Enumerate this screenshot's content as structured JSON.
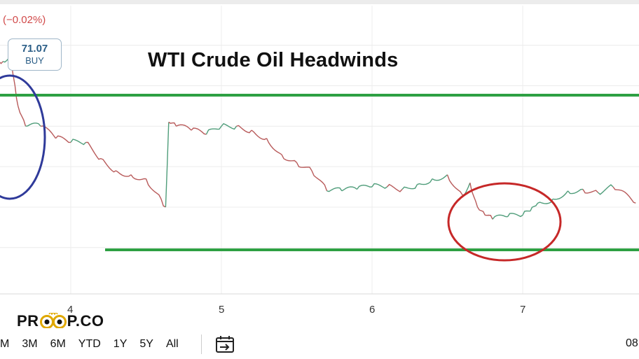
{
  "ticker": {
    "change_pct": "(−0.02%)",
    "price": "71.07",
    "side": "BUY"
  },
  "chart_data": {
    "type": "line",
    "title": "WTI Crude Oil Headwinds",
    "x_tick_labels": [
      "4",
      "5",
      "6",
      "7"
    ],
    "y_visible_range": [
      69.6,
      72.8
    ],
    "series": [
      {
        "x": [
          3.5,
          3.55,
          3.6,
          3.63,
          3.65,
          3.7,
          3.8,
          3.9,
          4.0,
          4.1,
          4.2,
          4.3,
          4.4,
          4.5,
          4.6,
          4.63,
          4.65,
          4.7,
          4.8,
          4.9,
          5.0,
          5.1,
          5.2,
          5.3,
          5.4,
          5.5,
          5.6,
          5.7,
          5.8,
          5.9,
          6.0,
          6.1,
          6.2,
          6.3,
          6.4,
          6.5,
          6.6,
          6.65,
          6.7,
          6.75,
          6.8,
          6.9,
          7.0,
          7.05,
          7.1,
          7.2,
          7.3,
          7.4,
          7.5,
          7.6,
          7.75
        ],
        "y": [
          72.35,
          72.3,
          72.4,
          72.0,
          71.75,
          71.5,
          71.5,
          71.35,
          71.3,
          71.3,
          71.1,
          70.95,
          70.9,
          70.85,
          70.6,
          70.5,
          71.55,
          71.5,
          71.45,
          71.4,
          71.5,
          71.5,
          71.45,
          71.35,
          71.15,
          71.05,
          70.95,
          70.7,
          70.7,
          70.72,
          70.75,
          70.75,
          70.72,
          70.78,
          70.85,
          70.9,
          70.65,
          70.8,
          70.5,
          70.4,
          70.35,
          70.38,
          70.4,
          70.45,
          70.55,
          70.6,
          70.7,
          70.72,
          70.68,
          70.75,
          70.55
        ]
      }
    ],
    "annotations": {
      "resistance_line_color": "#2ea043",
      "support_line_color": "#2ea043",
      "left_circle_color": "#2f3a9a",
      "right_circle_color": "#c62828"
    },
    "grid": true
  },
  "logo": {
    "left": "PR",
    "right": "P.CO"
  },
  "range_buttons": [
    "M",
    "3M",
    "6M",
    "YTD",
    "1Y",
    "5Y",
    "All"
  ],
  "date_right": "08"
}
